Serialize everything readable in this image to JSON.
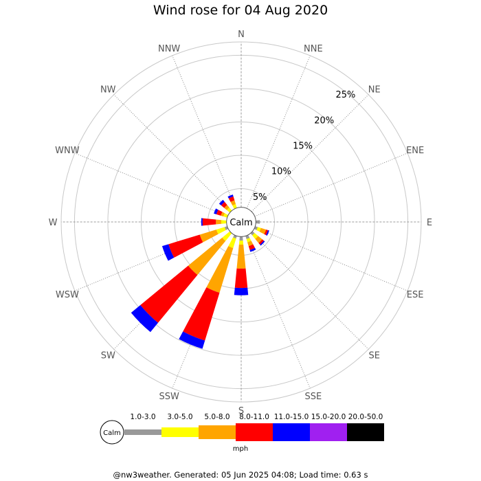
{
  "title": "Wind rose for 04 Aug 2020",
  "footer": "@nw3weather. Generated: 05 Jun 2025 04:08; Load time: 0.63 s",
  "chart_data": {
    "type": "wind-rose",
    "title": "Wind rose for 04 Aug 2020",
    "calm_label": "Calm",
    "units": "mph",
    "directions": [
      "N",
      "NNE",
      "NE",
      "ENE",
      "E",
      "ESE",
      "SE",
      "SSE",
      "S",
      "SSW",
      "SW",
      "WSW",
      "W",
      "WNW",
      "NW",
      "NNW"
    ],
    "radial_ticks": [
      5,
      10,
      15,
      20,
      25
    ],
    "radial_tick_labels": [
      "5%",
      "10%",
      "15%",
      "20%",
      "25%"
    ],
    "rmax_percent": 27,
    "calm_radius_percent": 2.2,
    "speed_bins": [
      {
        "label": "1.0-3.0",
        "color": "#999999"
      },
      {
        "label": "3.0-5.0",
        "color": "#ffff00"
      },
      {
        "label": "5.0-8.0",
        "color": "#ffa500"
      },
      {
        "label": "8.0-11.0",
        "color": "#ff0000"
      },
      {
        "label": "11.0-15.0",
        "color": "#0000ff"
      },
      {
        "label": "15.0-20.0",
        "color": "#a020f0"
      },
      {
        "label": "20.0-50.0",
        "color": "#000000"
      }
    ],
    "frequencies_percent": {
      "N": [
        0,
        0,
        0,
        0,
        0,
        0,
        0
      ],
      "NNE": [
        0,
        0,
        0,
        0,
        0,
        0,
        0
      ],
      "NE": [
        0,
        0,
        0,
        0,
        0,
        0,
        0
      ],
      "ENE": [
        0,
        0,
        0,
        0,
        0,
        0,
        0
      ],
      "E": [
        0.6,
        0,
        0,
        0,
        0,
        0,
        0
      ],
      "ESE": [
        0.4,
        0.5,
        0.8,
        0.3,
        0.2,
        0,
        0
      ],
      "SE": [
        0.4,
        0.7,
        0.8,
        0.3,
        0.2,
        0,
        0
      ],
      "SSE": [
        0.5,
        0.5,
        0.6,
        0.6,
        0.3,
        0,
        0
      ],
      "S": [
        0.6,
        0.6,
        3.6,
        2.9,
        1.1,
        0,
        0
      ],
      "SSW": [
        0.4,
        1.5,
        7.0,
        7.5,
        1.3,
        0,
        0
      ],
      "SW": [
        0,
        1.5,
        6.6,
        9.3,
        1.8,
        0,
        0
      ],
      "WSW": [
        0.4,
        1.3,
        2.6,
        4.9,
        1.0,
        0,
        0
      ],
      "W": [
        0,
        0.8,
        0.8,
        2.0,
        0.2,
        0,
        0
      ],
      "WNW": [
        0,
        0.6,
        0.4,
        0.7,
        0.4,
        0,
        0
      ],
      "NW": [
        0,
        0.6,
        0.5,
        0.6,
        0.4,
        0,
        0
      ],
      "NNW": [
        0,
        0.6,
        0.6,
        0.6,
        0.3,
        0,
        0
      ]
    }
  }
}
